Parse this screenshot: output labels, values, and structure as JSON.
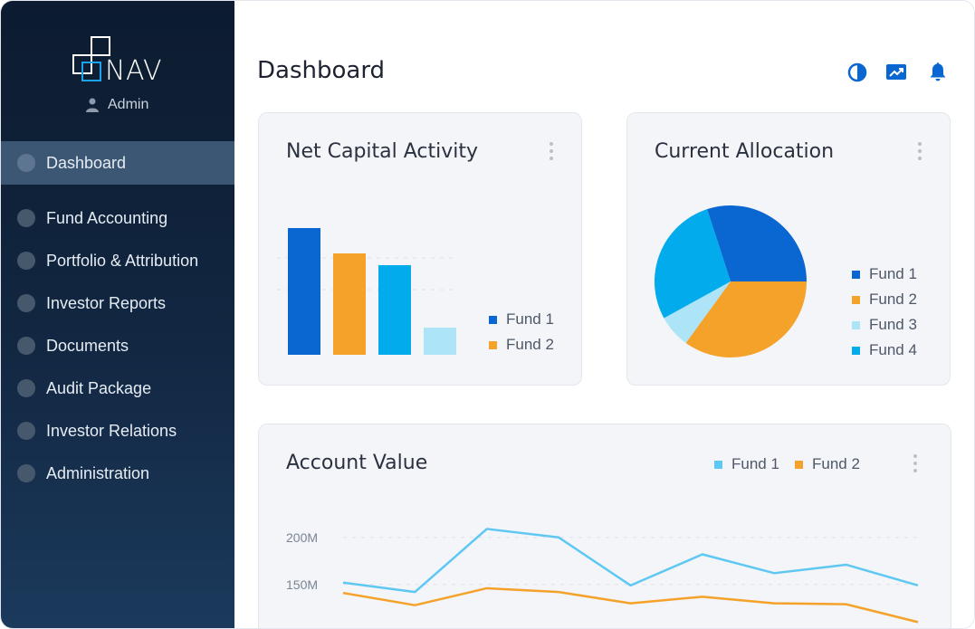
{
  "app": {
    "logo_text": "NAV",
    "user": "Admin"
  },
  "sidebar": {
    "items": [
      {
        "label": "Dashboard",
        "active": true
      },
      {
        "label": "Fund Accounting",
        "active": false
      },
      {
        "label": "Portfolio & Attribution",
        "active": false
      },
      {
        "label": "Investor Reports",
        "active": false
      },
      {
        "label": "Documents",
        "active": false
      },
      {
        "label": "Audit Package",
        "active": false
      },
      {
        "label": "Investor Relations",
        "active": false
      },
      {
        "label": "Administration",
        "active": false
      }
    ]
  },
  "header": {
    "title": "Dashboard",
    "icons": [
      "contrast-icon",
      "trending-chart-icon",
      "bell-icon"
    ]
  },
  "colors": {
    "fund1": "#0a66d0",
    "fund2": "#f5a22b",
    "fund3": "#aee4f7",
    "fund4": "#02abec",
    "line_fund1": "#5fc8f2",
    "line_fund2": "#f5a22b"
  },
  "cards": {
    "net_capital": {
      "title": "Net Capital Activity",
      "legend": [
        "Fund 1",
        "Fund 2"
      ]
    },
    "allocation": {
      "title": "Current Allocation",
      "legend": [
        "Fund 1",
        "Fund 2",
        "Fund 3",
        "Fund 4"
      ]
    },
    "account_value": {
      "title": "Account Value",
      "legend": [
        "Fund 1",
        "Fund 2"
      ]
    }
  },
  "chart_data": [
    {
      "type": "bar",
      "title": "Net Capital Activity",
      "categories": [
        "1",
        "2",
        "3",
        "4"
      ],
      "values": [
        140,
        112,
        99,
        30
      ],
      "bar_colors": [
        "#0a66d0",
        "#f5a22b",
        "#02abec",
        "#aee4f7"
      ],
      "ylim": [
        0,
        150
      ]
    },
    {
      "type": "pie",
      "title": "Current Allocation",
      "labels": [
        "Fund 1",
        "Fund 2",
        "Fund 3",
        "Fund 4"
      ],
      "values": [
        30,
        35,
        7,
        28
      ],
      "colors": [
        "#0a66d0",
        "#f5a22b",
        "#aee4f7",
        "#02abec"
      ]
    },
    {
      "type": "line",
      "title": "Account Value",
      "yticks": [
        "200M",
        "150M"
      ],
      "x": [
        1,
        2,
        3,
        4,
        5,
        6,
        7,
        8,
        9
      ],
      "series": [
        {
          "name": "Fund 1",
          "color": "#5fc8f2",
          "values": [
            152,
            142,
            209,
            200,
            149,
            182,
            162,
            171,
            149
          ]
        },
        {
          "name": "Fund 2",
          "color": "#f5a22b",
          "values": [
            141,
            128,
            146,
            142,
            130,
            137,
            130,
            129,
            110
          ]
        }
      ],
      "ylim": [
        100,
        220
      ]
    }
  ]
}
